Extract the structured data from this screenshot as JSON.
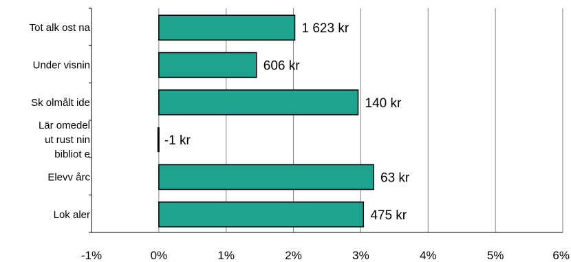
{
  "chart_data": {
    "type": "bar",
    "orientation": "horizontal",
    "categories": [
      [
        "Tot alk ost na"
      ],
      [
        "Under visnin"
      ],
      [
        "Sk olmålt ide"
      ],
      [
        "Lär omedel",
        "ut rust nin",
        "bibliot e"
      ],
      [
        "Elevv årc"
      ],
      [
        "Lok aler"
      ]
    ],
    "values": [
      2.02,
      1.45,
      2.96,
      -0.01,
      3.19,
      3.04
    ],
    "data_labels": [
      "1 623 kr",
      "606 kr",
      "140 kr",
      "-1 kr",
      "63 kr",
      "475 kr"
    ],
    "x_ticks": [
      "-1%",
      "0%",
      "1%",
      "2%",
      "3%",
      "4%",
      "5%",
      "6%"
    ],
    "xlim": [
      -1,
      6
    ],
    "grid": "vertical",
    "title": "",
    "xlabel": "",
    "ylabel": "",
    "colors": {
      "bar": "#1fa391",
      "bar_stroke": "#000000",
      "grid": "#808080"
    }
  }
}
